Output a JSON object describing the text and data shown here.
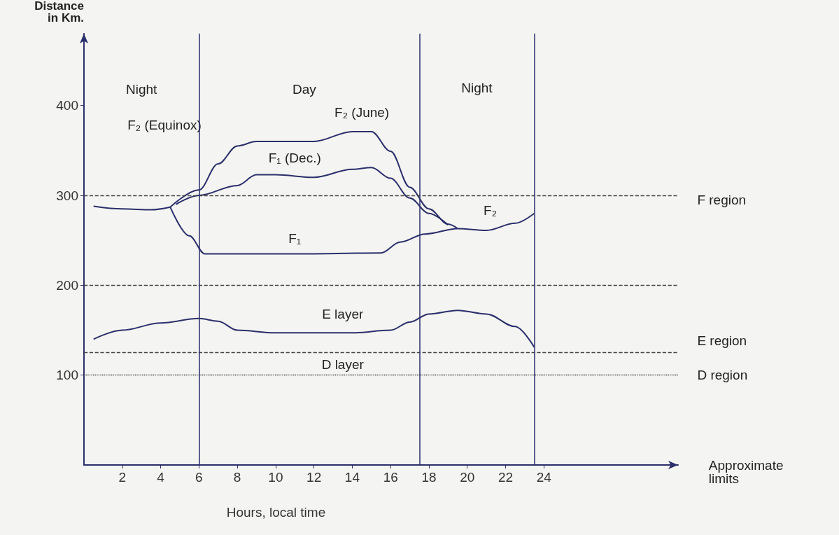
{
  "chart_data": {
    "type": "line",
    "xlabel": "Hours, local time",
    "ylabel": "Distance\nin Km.",
    "xlim": [
      0,
      31
    ],
    "xticks": [
      2,
      4,
      6,
      8,
      10,
      12,
      14,
      16,
      18,
      20,
      22,
      24
    ],
    "ylim": [
      0,
      480
    ],
    "yticks": [
      100,
      200,
      300,
      400
    ],
    "marker": "none",
    "line_style": "solid",
    "series": [
      {
        "color": "#2b2f6b",
        "x": [
          0.5,
          2,
          3.5,
          4.5
        ],
        "values": [
          288,
          285,
          284,
          287
        ]
      },
      {
        "color": "#2b2f6b",
        "x": [
          4.5,
          6,
          7,
          8,
          9,
          12,
          14,
          15,
          16,
          17,
          18,
          19,
          19.5
        ],
        "values": [
          287,
          306,
          335,
          355,
          360,
          360,
          371,
          371,
          349,
          309,
          285,
          268,
          263
        ]
      },
      {
        "color": "#2b2f6b",
        "x": [
          4.8,
          6,
          8,
          9,
          10,
          12,
          14,
          15,
          16,
          17,
          18,
          19
        ],
        "values": [
          290,
          300,
          311,
          323,
          323,
          320,
          329,
          331,
          319,
          297,
          280,
          267
        ]
      },
      {
        "color": "#2b2f6b",
        "x": [
          4.5,
          5.5,
          6.3,
          8,
          12,
          15.5,
          16.5,
          17.8,
          19.5,
          21,
          22.5,
          23.5
        ],
        "values": [
          287,
          255,
          235,
          235,
          235,
          236,
          248,
          257,
          263,
          261,
          269,
          280
        ]
      },
      {
        "color": "#2b2f6b",
        "x": [
          0.5,
          2,
          4,
          6,
          7,
          8,
          10,
          14,
          16,
          17,
          18,
          19.5,
          21,
          22.5,
          23.5
        ],
        "values": [
          140,
          150,
          158,
          163,
          160,
          150,
          147,
          147,
          150,
          159,
          168,
          172,
          168,
          154,
          131
        ]
      }
    ],
    "ref_lines": [
      {
        "axis": "y",
        "value": 300,
        "line_style": "dashed"
      },
      {
        "axis": "y",
        "value": 200,
        "line_style": "dashed"
      },
      {
        "axis": "y",
        "value": 125,
        "line_style": "dashed"
      },
      {
        "axis": "y",
        "value": 100,
        "line_style": "dotted"
      },
      {
        "axis": "x",
        "value": 6,
        "line_style": "solid"
      },
      {
        "axis": "x",
        "value": 17.5,
        "line_style": "solid"
      },
      {
        "axis": "x",
        "value": 23.5,
        "line_style": "solid"
      }
    ],
    "annotations": [
      "Night",
      "Day",
      "Night",
      "F₂ (June)",
      "F₂ (Equinox)",
      "F₁ (Dec.)",
      "F₂",
      "F₁",
      "E layer",
      "D layer",
      "F region",
      "E region",
      "D region",
      "Approximate\nlimits"
    ]
  }
}
